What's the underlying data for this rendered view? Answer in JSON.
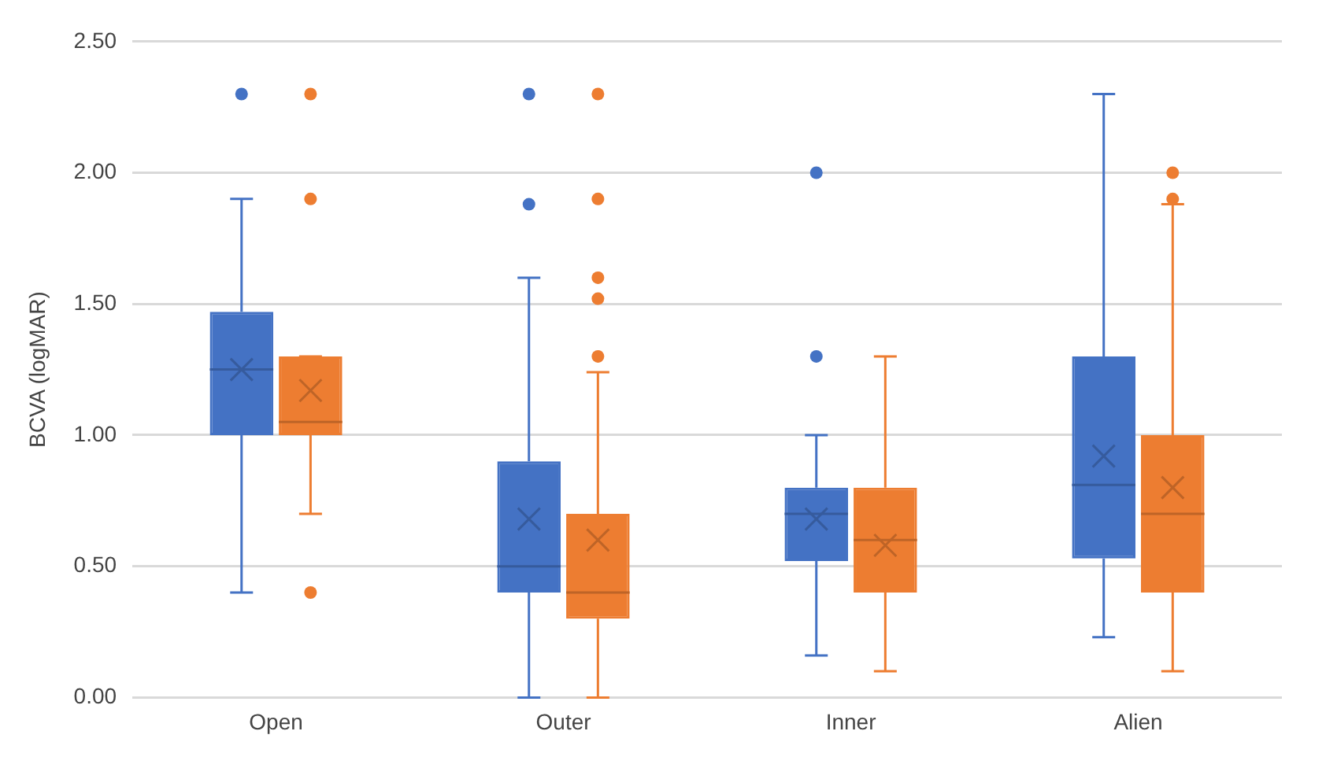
{
  "chart_data": {
    "type": "box",
    "ylabel": "BCVA (logMAR)",
    "categories": [
      "Open",
      "Outer",
      "Inner",
      "Alien"
    ],
    "ylim": [
      0,
      2.5
    ],
    "yticks": [
      {
        "value": 0,
        "label": "0.00"
      },
      {
        "value": 0.5,
        "label": "0.50"
      },
      {
        "value": 1,
        "label": "1.00"
      },
      {
        "value": 1.5,
        "label": "1.50"
      },
      {
        "value": 2,
        "label": "2.00"
      },
      {
        "value": 2.5,
        "label": "2.50"
      }
    ],
    "grid": "y",
    "legend": false,
    "marker": "circle",
    "series": [
      {
        "color": "#4472c4",
        "boxes": [
          {
            "low": 0.4,
            "q1": 1.0,
            "median": 1.25,
            "q3": 1.47,
            "high": 1.9,
            "mean": 1.25,
            "outliers": [
              2.3
            ]
          },
          {
            "low": 0,
            "q1": 0.4,
            "median": 0.5,
            "q3": 0.9,
            "high": 1.6,
            "mean": 0.68,
            "outliers": [
              2.3,
              1.88
            ]
          },
          {
            "low": 0.16,
            "q1": 0.52,
            "median": 0.7,
            "q3": 0.8,
            "high": 1.0,
            "mean": 0.68,
            "outliers": [
              2.0,
              1.3
            ]
          },
          {
            "low": 0.23,
            "q1": 0.53,
            "median": 0.81,
            "q3": 1.3,
            "high": 2.3,
            "mean": 0.92
          }
        ]
      },
      {
        "color": "#ed7d31",
        "boxes": [
          {
            "low": 0.7,
            "q1": 1.0,
            "median": 1.05,
            "q3": 1.3,
            "high": 1.3,
            "mean": 1.17,
            "outliers": [
              2.3,
              1.9,
              0.4
            ]
          },
          {
            "low": 0,
            "q1": 0.3,
            "median": 0.4,
            "q3": 0.7,
            "high": 1.24,
            "mean": 0.6,
            "outliers": [
              2.3,
              1.9,
              1.6,
              1.52,
              1.3
            ]
          },
          {
            "low": 0.1,
            "q1": 0.4,
            "median": 0.6,
            "q3": 0.8,
            "high": 1.3,
            "mean": 0.58
          },
          {
            "low": 0.1,
            "q1": 0.4,
            "median": 0.7,
            "q3": 1.0,
            "high": 1.88,
            "mean": 0.8,
            "outliers": [
              2.0,
              1.9
            ]
          }
        ]
      }
    ]
  }
}
